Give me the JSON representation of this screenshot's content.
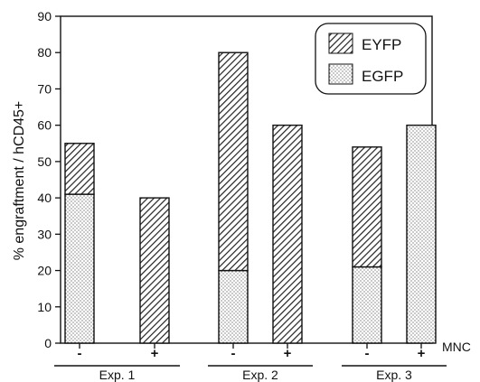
{
  "chart_data": {
    "type": "bar",
    "stacked": true,
    "ylabel": "% engraftment / hCD45+",
    "ylim": [
      0,
      90
    ],
    "yticks": [
      0,
      10,
      20,
      30,
      40,
      50,
      60,
      70,
      80,
      90
    ],
    "grid": false,
    "legend_position": "top-right",
    "series": [
      {
        "name": "EGFP",
        "pattern": "dotted",
        "values": [
          41,
          0,
          20,
          0,
          21,
          60
        ]
      },
      {
        "name": "EYFP",
        "pattern": "hatched",
        "values": [
          14,
          40,
          60,
          60,
          33,
          0
        ]
      }
    ],
    "categories": [
      "-",
      "+",
      "-",
      "+",
      "-",
      "+"
    ],
    "category_axis_label": "MNC",
    "groups": [
      {
        "label": "Exp. 1",
        "categories": [
          0,
          1
        ]
      },
      {
        "label": "Exp. 2",
        "categories": [
          2,
          3
        ]
      },
      {
        "label": "Exp. 3",
        "categories": [
          4,
          5
        ]
      }
    ],
    "colors": {
      "ink": "#111111",
      "background": "#ffffff"
    }
  }
}
